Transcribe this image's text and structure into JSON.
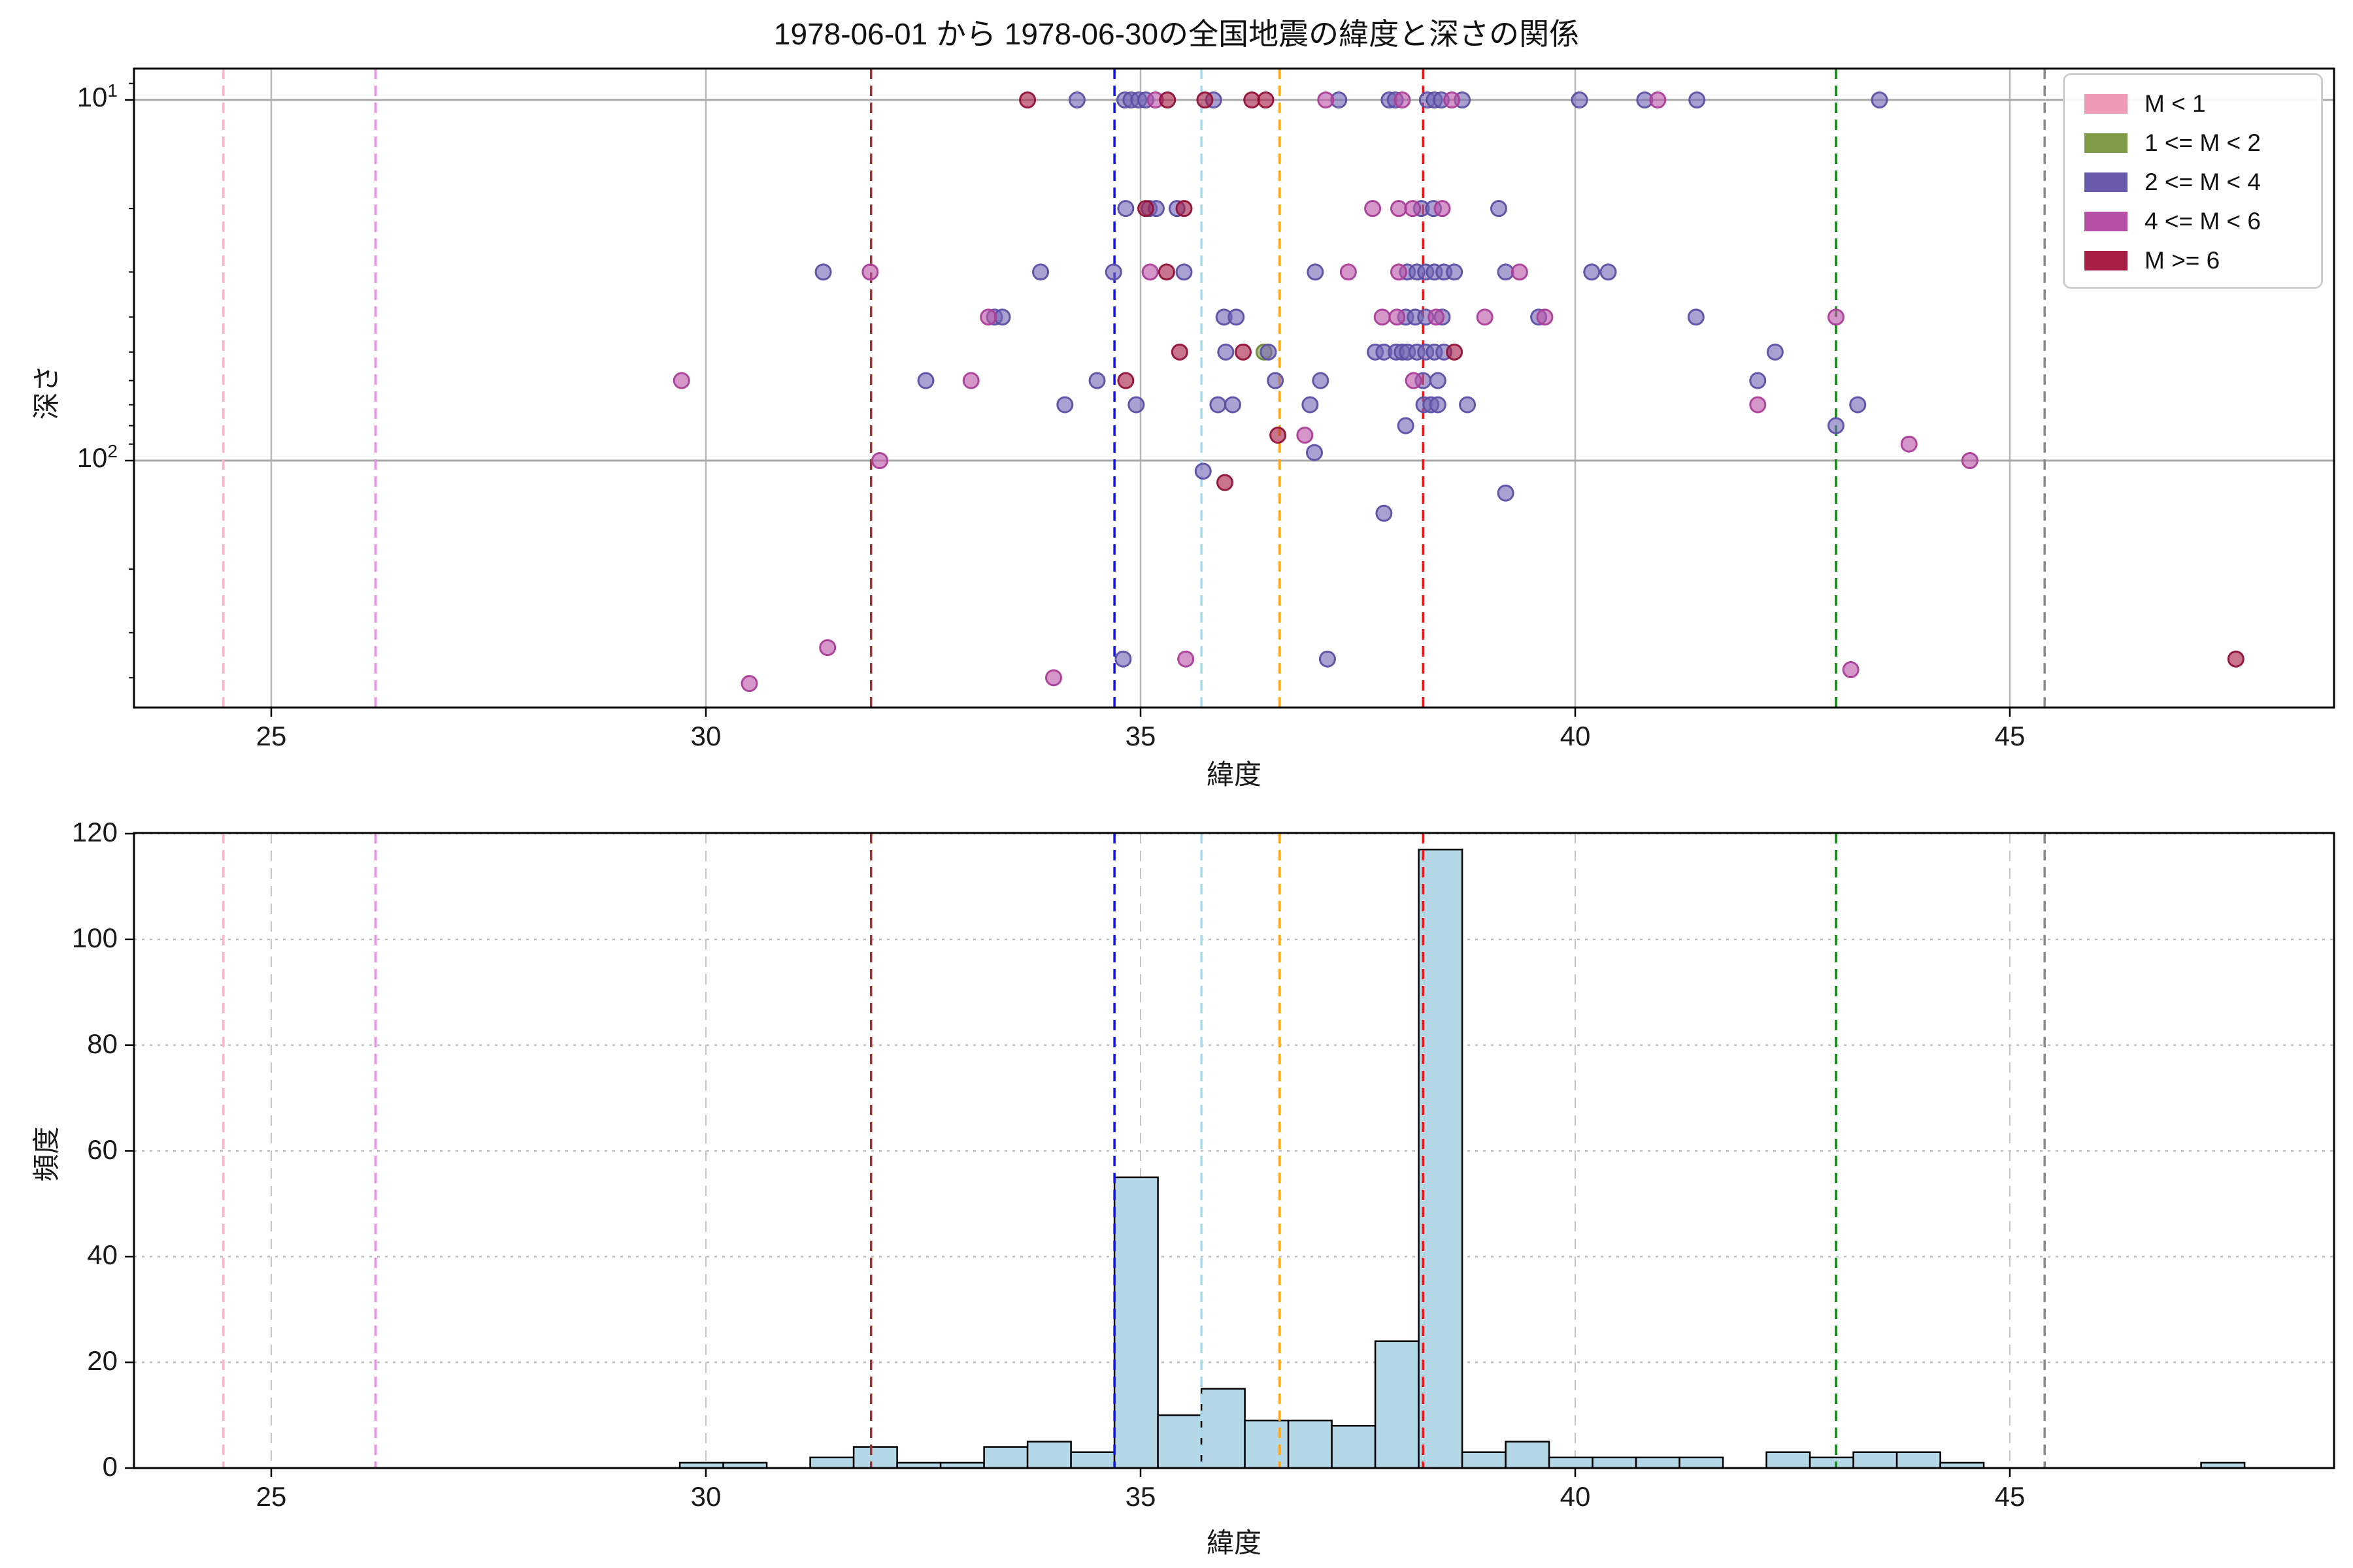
{
  "chart_data": [
    {
      "type": "scatter",
      "title": "1978-06-01 から 1978-06-30の全国地震の緯度と深さの関係",
      "xlabel": "緯度",
      "ylabel": "深さ",
      "x_ticks": [
        25,
        30,
        35,
        40,
        45
      ],
      "xlim": [
        23.42,
        48.73
      ],
      "y_scale": "log",
      "y_inverted": true,
      "ylim": [
        8.2,
        484
      ],
      "y_ticks": [
        {
          "base": "10",
          "exp": "1",
          "value": 10
        },
        {
          "base": "10",
          "exp": "2",
          "value": 100
        }
      ],
      "y_minor_ticks": [
        9,
        20,
        30,
        40,
        50,
        60,
        70,
        80,
        90,
        200,
        300,
        400
      ],
      "grid": "solid",
      "legend_position": "upper right",
      "legend": [
        {
          "label": "M < 1",
          "color": "#ee9ab5"
        },
        {
          "label": "1 <= M < 2",
          "color": "#7e9b45"
        },
        {
          "label": "2 <= M < 4",
          "color": "#6a5aab"
        },
        {
          "label": "4 <= M < 6",
          "color": "#b650a4"
        },
        {
          "label": "M >= 6",
          "color": "#a81e45"
        }
      ],
      "vlines": [
        {
          "lat": 24.45,
          "color": "#f9b8ca",
          "name": "refline-pink"
        },
        {
          "lat": 26.2,
          "color": "#ee82ee",
          "name": "refline-violet"
        },
        {
          "lat": 31.9,
          "color": "#a03030",
          "name": "refline-darkred"
        },
        {
          "lat": 34.7,
          "color": "#1212e8",
          "name": "refline-blue"
        },
        {
          "lat": 35.7,
          "color": "#a5daee",
          "name": "refline-lightcyan"
        },
        {
          "lat": 36.6,
          "color": "#ffa510",
          "name": "refline-orange"
        },
        {
          "lat": 38.25,
          "color": "#f01414",
          "name": "refline-red"
        },
        {
          "lat": 43.0,
          "color": "#0c8a0c",
          "name": "refline-green"
        },
        {
          "lat": 45.4,
          "color": "#8a8a8a",
          "name": "refline-gray"
        }
      ],
      "series": [
        {
          "name": "M < 1",
          "fill": "#ee9ab5",
          "stroke": "#e47a9e",
          "points": []
        },
        {
          "name": "1 <= M < 2",
          "fill": "#7e9b45",
          "stroke": "#6c8936",
          "points": [
            [
              36.42,
              50
            ]
          ]
        },
        {
          "name": "2 <= M < 4",
          "fill": "#7467b4",
          "stroke": "#5c4fa4",
          "points": [
            [
              34.27,
              10
            ],
            [
              34.82,
              10
            ],
            [
              34.89,
              10
            ],
            [
              34.98,
              10
            ],
            [
              35.06,
              10
            ],
            [
              35.84,
              10
            ],
            [
              37.28,
              10
            ],
            [
              37.86,
              10
            ],
            [
              37.93,
              10
            ],
            [
              38.3,
              10
            ],
            [
              38.38,
              10
            ],
            [
              38.46,
              10
            ],
            [
              38.7,
              10
            ],
            [
              40.05,
              10
            ],
            [
              40.8,
              10
            ],
            [
              41.4,
              10
            ],
            [
              43.5,
              10
            ],
            [
              34.83,
              20
            ],
            [
              35.1,
              20
            ],
            [
              35.18,
              20
            ],
            [
              35.42,
              20
            ],
            [
              38.23,
              20
            ],
            [
              38.37,
              20
            ],
            [
              39.12,
              20
            ],
            [
              31.35,
              30
            ],
            [
              33.85,
              30
            ],
            [
              34.69,
              30
            ],
            [
              35.5,
              30
            ],
            [
              37.01,
              30
            ],
            [
              38.07,
              30
            ],
            [
              38.18,
              30
            ],
            [
              38.28,
              30
            ],
            [
              38.38,
              30
            ],
            [
              38.49,
              30
            ],
            [
              38.61,
              30
            ],
            [
              39.2,
              30
            ],
            [
              40.19,
              30
            ],
            [
              40.38,
              30
            ],
            [
              33.32,
              40
            ],
            [
              33.41,
              40
            ],
            [
              35.96,
              40
            ],
            [
              36.1,
              40
            ],
            [
              38.05,
              40
            ],
            [
              38.16,
              40
            ],
            [
              38.28,
              40
            ],
            [
              38.47,
              40
            ],
            [
              39.58,
              40
            ],
            [
              41.39,
              40
            ],
            [
              35.98,
              50
            ],
            [
              36.47,
              50
            ],
            [
              37.7,
              50
            ],
            [
              37.8,
              50
            ],
            [
              37.94,
              50
            ],
            [
              38.01,
              50
            ],
            [
              38.07,
              50
            ],
            [
              38.18,
              50
            ],
            [
              38.28,
              50
            ],
            [
              38.38,
              50
            ],
            [
              38.49,
              50
            ],
            [
              42.3,
              50
            ],
            [
              32.53,
              60
            ],
            [
              34.5,
              60
            ],
            [
              36.55,
              60
            ],
            [
              37.07,
              60
            ],
            [
              38.25,
              60
            ],
            [
              38.42,
              60
            ],
            [
              42.1,
              60
            ],
            [
              34.13,
              70
            ],
            [
              34.95,
              70
            ],
            [
              35.89,
              70
            ],
            [
              36.06,
              70
            ],
            [
              36.95,
              70
            ],
            [
              38.26,
              70
            ],
            [
              38.34,
              70
            ],
            [
              38.42,
              70
            ],
            [
              38.76,
              70
            ],
            [
              43.25,
              70
            ],
            [
              38.05,
              80
            ],
            [
              43.0,
              80
            ],
            [
              37.0,
              95
            ],
            [
              35.72,
              107
            ],
            [
              39.2,
              123
            ],
            [
              37.8,
              140
            ],
            [
              34.8,
              355
            ],
            [
              37.15,
              355
            ]
          ]
        },
        {
          "name": "4 <= M < 6",
          "fill": "#bc55aa",
          "stroke": "#ab3d98",
          "points": [
            [
              35.17,
              10
            ],
            [
              37.13,
              10
            ],
            [
              38.01,
              10
            ],
            [
              38.58,
              10
            ],
            [
              40.95,
              10
            ],
            [
              37.67,
              20
            ],
            [
              37.97,
              20
            ],
            [
              38.13,
              20
            ],
            [
              38.47,
              20
            ],
            [
              31.89,
              30
            ],
            [
              35.11,
              30
            ],
            [
              37.39,
              30
            ],
            [
              37.97,
              30
            ],
            [
              39.36,
              30
            ],
            [
              33.25,
              40
            ],
            [
              37.78,
              40
            ],
            [
              37.95,
              40
            ],
            [
              38.4,
              40
            ],
            [
              38.96,
              40
            ],
            [
              39.65,
              40
            ],
            [
              43.0,
              40
            ],
            [
              29.72,
              60
            ],
            [
              33.05,
              60
            ],
            [
              38.14,
              60
            ],
            [
              42.1,
              70
            ],
            [
              36.89,
              85
            ],
            [
              43.84,
              90
            ],
            [
              32.0,
              100
            ],
            [
              44.54,
              100
            ],
            [
              31.4,
              330
            ],
            [
              35.52,
              355
            ],
            [
              43.17,
              380
            ],
            [
              34.0,
              400
            ],
            [
              30.5,
              415
            ]
          ]
        },
        {
          "name": "M >= 6",
          "fill": "#a41e45",
          "stroke": "#921136",
          "points": [
            [
              33.7,
              10
            ],
            [
              35.31,
              10
            ],
            [
              35.74,
              10
            ],
            [
              36.28,
              10
            ],
            [
              36.44,
              10
            ],
            [
              35.06,
              20
            ],
            [
              35.5,
              20
            ],
            [
              35.3,
              30
            ],
            [
              35.45,
              50
            ],
            [
              36.18,
              50
            ],
            [
              38.61,
              50
            ],
            [
              34.83,
              60
            ],
            [
              36.58,
              85
            ],
            [
              35.97,
              115
            ],
            [
              47.6,
              355
            ]
          ]
        }
      ]
    },
    {
      "type": "bar",
      "xlabel": "緯度",
      "ylabel": "頻度",
      "x_ticks": [
        25,
        30,
        35,
        40,
        45
      ],
      "xlim": [
        23.42,
        48.73
      ],
      "ylim": [
        0,
        120.1
      ],
      "y_ticks": [
        0,
        20,
        40,
        60,
        80,
        100,
        120
      ],
      "grid": "dashed",
      "bar_color": "#b4d8e7",
      "bar_edge_color": "#000000",
      "bin_width": 0.5,
      "bars": [
        {
          "lat": 29.7,
          "count": 1
        },
        {
          "lat": 30.2,
          "count": 1
        },
        {
          "lat": 31.2,
          "count": 2
        },
        {
          "lat": 31.7,
          "count": 4
        },
        {
          "lat": 32.2,
          "count": 1
        },
        {
          "lat": 32.7,
          "count": 1
        },
        {
          "lat": 33.2,
          "count": 4
        },
        {
          "lat": 33.7,
          "count": 5
        },
        {
          "lat": 34.2,
          "count": 3
        },
        {
          "lat": 34.7,
          "count": 55
        },
        {
          "lat": 35.2,
          "count": 10
        },
        {
          "lat": 35.7,
          "count": 15
        },
        {
          "lat": 36.2,
          "count": 9
        },
        {
          "lat": 36.7,
          "count": 9
        },
        {
          "lat": 37.2,
          "count": 8
        },
        {
          "lat": 37.7,
          "count": 24
        },
        {
          "lat": 38.2,
          "count": 117
        },
        {
          "lat": 38.7,
          "count": 3
        },
        {
          "lat": 39.2,
          "count": 5
        },
        {
          "lat": 39.7,
          "count": 2
        },
        {
          "lat": 40.2,
          "count": 2
        },
        {
          "lat": 40.7,
          "count": 2
        },
        {
          "lat": 41.2,
          "count": 2
        },
        {
          "lat": 42.2,
          "count": 3
        },
        {
          "lat": 42.7,
          "count": 2
        },
        {
          "lat": 43.2,
          "count": 3
        },
        {
          "lat": 43.7,
          "count": 3
        },
        {
          "lat": 44.2,
          "count": 1
        },
        {
          "lat": 47.2,
          "count": 1
        }
      ]
    }
  ]
}
